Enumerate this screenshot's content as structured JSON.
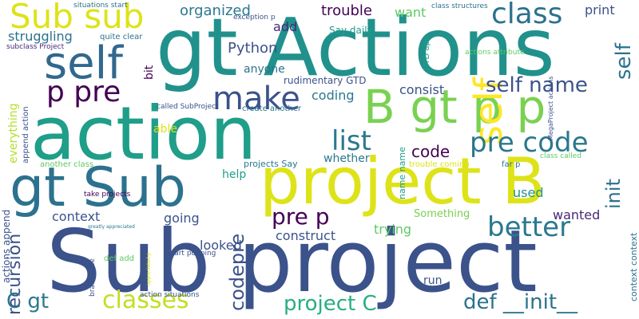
{
  "words": [
    {
      "text": "Sub project",
      "color": "#3b528b"
    },
    {
      "text": "gt Actions",
      "color": "#21918c"
    },
    {
      "text": "action",
      "color": "#1f9e89"
    },
    {
      "text": "project B",
      "color": "#dde318"
    },
    {
      "text": "gt Sub",
      "color": "#2c728e"
    },
    {
      "text": "B gt p p",
      "color": "#7ad151"
    },
    {
      "text": "Sub sub",
      "color": "#dde318"
    },
    {
      "text": "self",
      "color": "#31688e"
    },
    {
      "text": "self",
      "color": "#fde725"
    },
    {
      "text": "p pre",
      "color": "#440154"
    },
    {
      "text": "class",
      "color": "#2c728e"
    },
    {
      "text": "make",
      "color": "#3b528b"
    },
    {
      "text": "better",
      "color": "#2a788e"
    },
    {
      "text": "list",
      "color": "#2a788e"
    },
    {
      "text": "pre code",
      "color": "#2a788e"
    },
    {
      "text": "classes",
      "color": "#c2df23"
    },
    {
      "text": "project C",
      "color": "#28ae80"
    },
    {
      "text": "def __init__",
      "color": "#2c728e"
    },
    {
      "text": "self name",
      "color": "#3b528b"
    },
    {
      "text": "init",
      "color": "#2c728e"
    },
    {
      "text": "pre p",
      "color": "#440154"
    },
    {
      "text": "code",
      "color": "#440154"
    },
    {
      "text": "codepre",
      "color": "#3b528b"
    },
    {
      "text": "recursion",
      "color": "#3b528b"
    },
    {
      "text": "C gt",
      "color": "#2a788e"
    },
    {
      "text": "self",
      "color": "#2c728e"
    },
    {
      "text": "organized",
      "color": "#2a788e"
    },
    {
      "text": "trouble",
      "color": "#440154"
    },
    {
      "text": "want",
      "color": "#5ec962"
    },
    {
      "text": "print",
      "color": "#3b528b"
    },
    {
      "text": "struggling",
      "color": "#2c728e"
    },
    {
      "text": "Python",
      "color": "#3b528b"
    },
    {
      "text": "add",
      "color": "#482878"
    },
    {
      "text": "Say daily",
      "color": "#1f9e89"
    },
    {
      "text": "coding",
      "color": "#2a788e"
    },
    {
      "text": "consist",
      "color": "#3b528b"
    },
    {
      "text": "anyone",
      "color": "#2c728e"
    },
    {
      "text": "rudimentary GTD",
      "color": "#3b528b"
    },
    {
      "text": "context",
      "color": "#3b528b"
    },
    {
      "text": "going",
      "color": "#3b528b"
    },
    {
      "text": "construct",
      "color": "#3b528b"
    },
    {
      "text": "trying",
      "color": "#5ec962"
    },
    {
      "text": "wanted",
      "color": "#482878"
    },
    {
      "text": "used",
      "color": "#21918c"
    },
    {
      "text": "looked",
      "color": "#3b528b"
    },
    {
      "text": "help",
      "color": "#1f9e89"
    },
    {
      "text": "able",
      "color": "#dde318"
    },
    {
      "text": "whether",
      "color": "#2a788e"
    },
    {
      "text": "run",
      "color": "#3b528b"
    },
    {
      "text": "bit",
      "color": "#440154"
    },
    {
      "text": "everything",
      "color": "#b5de2b"
    },
    {
      "text": "actions append",
      "color": "#3b528b"
    },
    {
      "text": "Something",
      "color": "#7ad151"
    },
    {
      "text": "projects Say",
      "color": "#2a788e"
    },
    {
      "text": "name name",
      "color": "#1f9e89"
    },
    {
      "text": "context context",
      "color": "#2c728e"
    },
    {
      "text": "situations start",
      "color": "#2c728e"
    },
    {
      "text": "exception p",
      "color": "#3b528b"
    },
    {
      "text": "class structures",
      "color": "#2c728e"
    },
    {
      "text": "quite clear",
      "color": "#2c728e"
    },
    {
      "text": "subclass Project",
      "color": "#482878"
    },
    {
      "text": "GTD app",
      "color": "#1f9e89"
    },
    {
      "text": "actions attribute",
      "color": "#5ec962"
    },
    {
      "text": "called SubProject",
      "color": "#3b528b"
    },
    {
      "text": "create another",
      "color": "#2c728e"
    },
    {
      "text": "append action",
      "color": "#3b528b"
    },
    {
      "text": "another class",
      "color": "#5ec962"
    },
    {
      "text": "trouble coming",
      "color": "#dde318"
    },
    {
      "text": "far p",
      "color": "#2c728e"
    },
    {
      "text": "class called",
      "color": "#5ec962"
    },
    {
      "text": "MegaProject actions",
      "color": "#3b528b"
    },
    {
      "text": "take projects",
      "color": "#440154"
    },
    {
      "text": "greatly appreciated",
      "color": "#2a788e"
    },
    {
      "text": "def add",
      "color": "#5ec962"
    },
    {
      "text": "start popping",
      "color": "#3b528b"
    },
    {
      "text": "brain raise",
      "color": "#3b528b"
    },
    {
      "text": "appreciated p",
      "color": "#dde318"
    },
    {
      "text": "action situations",
      "color": "#3b528b"
    }
  ]
}
